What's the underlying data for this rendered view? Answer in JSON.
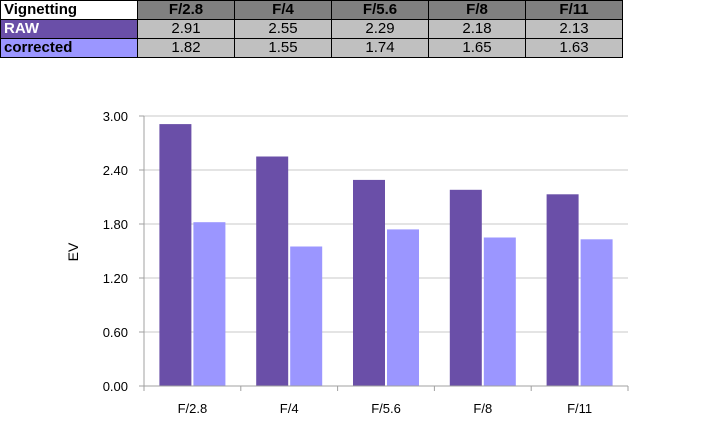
{
  "table": {
    "corner_label": "Vignetting",
    "columns": [
      "F/2.8",
      "F/4",
      "F/5.6",
      "F/8",
      "F/11"
    ],
    "rows": [
      {
        "label": "RAW",
        "values": [
          "2.91",
          "2.55",
          "2.29",
          "2.18",
          "2.13"
        ],
        "color": "#6a4fa8"
      },
      {
        "label": "corrected",
        "values": [
          "1.82",
          "1.55",
          "1.74",
          "1.65",
          "1.63"
        ],
        "color": "#9b96ff"
      }
    ]
  },
  "chart_data": {
    "type": "bar",
    "categories": [
      "F/2.8",
      "F/4",
      "F/5.6",
      "F/8",
      "F/11"
    ],
    "series": [
      {
        "name": "RAW",
        "values": [
          2.91,
          2.55,
          2.29,
          2.18,
          2.13
        ],
        "color": "#6a4fa8"
      },
      {
        "name": "corrected",
        "values": [
          1.82,
          1.55,
          1.74,
          1.65,
          1.63
        ],
        "color": "#9b96ff"
      }
    ],
    "ylabel": "EV",
    "ylim": [
      0,
      3
    ],
    "yticks": [
      "0.00",
      "0.60",
      "1.20",
      "1.80",
      "2.40",
      "3.00"
    ],
    "grid": true,
    "legend": "none"
  }
}
